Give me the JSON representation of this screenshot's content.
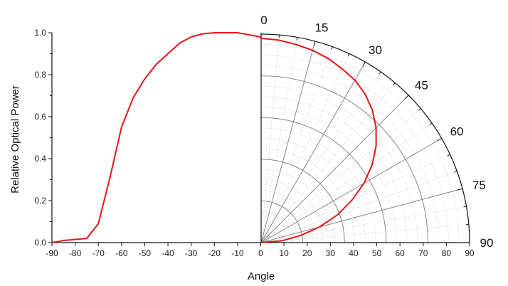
{
  "chart_data": {
    "type": "line",
    "xlabel": "Angle",
    "ylabel": "Relative Optical Power",
    "xlim": [
      -90,
      90
    ],
    "ylim": [
      0,
      1.0
    ],
    "x_ticks": [
      "-90",
      "-80",
      "-70",
      "-60",
      "-50",
      "-40",
      "-30",
      "-20",
      "-10",
      "0",
      "10",
      "20",
      "30",
      "40",
      "50",
      "60",
      "70",
      "80",
      "90"
    ],
    "y_ticks": [
      "0.0",
      "0.2",
      "0.4",
      "0.6",
      "0.8",
      "1.0"
    ],
    "polar_angle_labels": [
      "0",
      "15",
      "30",
      "45",
      "60",
      "75",
      "90"
    ],
    "line_color": "#e8141b",
    "grid_color": "#888888",
    "series": [
      {
        "x": [
          -90,
          -85,
          -80,
          -75,
          -70,
          -65,
          -60,
          -55,
          -50,
          -45,
          -40,
          -35,
          -30,
          -25,
          -20,
          -15,
          -10,
          -5,
          0
        ],
        "y": [
          0.0,
          0.01,
          0.015,
          0.02,
          0.09,
          0.31,
          0.55,
          0.69,
          0.78,
          0.85,
          0.9,
          0.95,
          0.98,
          0.995,
          1.0,
          1.0,
          1.0,
          0.99,
          0.98
        ]
      },
      {
        "polar": true,
        "theta": [
          0,
          5,
          10,
          15,
          20,
          25,
          30,
          35,
          40,
          45,
          50,
          55,
          60,
          65,
          70,
          75,
          80,
          85,
          90
        ],
        "r": [
          0.98,
          0.975,
          0.965,
          0.955,
          0.94,
          0.92,
          0.9,
          0.87,
          0.83,
          0.78,
          0.72,
          0.65,
          0.57,
          0.48,
          0.39,
          0.29,
          0.19,
          0.1,
          0.0
        ]
      }
    ]
  }
}
